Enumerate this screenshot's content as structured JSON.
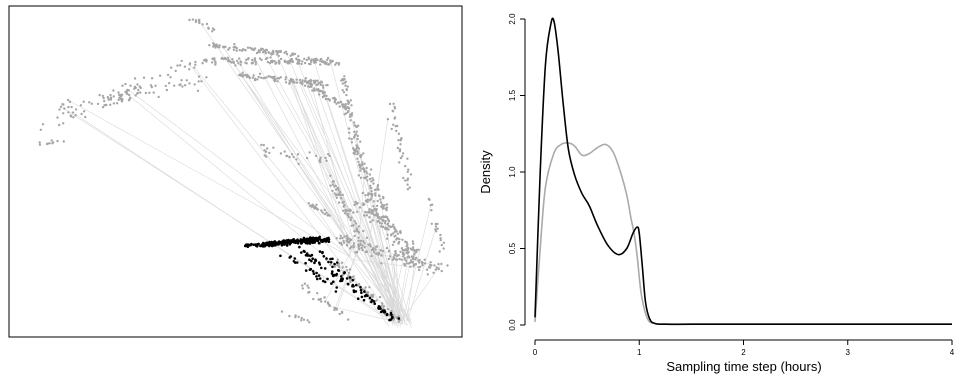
{
  "chart_data": [
    {
      "type": "scatter",
      "title": "",
      "xlabel": "",
      "ylabel": "",
      "axes_shown": false,
      "series": [
        {
          "name": "",
          "color": "#a6a6a6",
          "role": "background trajectory points"
        },
        {
          "name": "",
          "color": "#000000",
          "role": "highlighted trajectory points"
        }
      ]
    },
    {
      "type": "line",
      "title": "",
      "xlabel": "Sampling time step (hours)",
      "ylabel": "Density",
      "xlim": [
        0,
        4
      ],
      "ylim": [
        0,
        2.0
      ],
      "x_ticks": [
        "0",
        "1",
        "2",
        "3",
        "4"
      ],
      "y_ticks": [
        "0.0",
        "0.5",
        "1.0",
        "1.5",
        "2.0"
      ],
      "series": [
        {
          "name": "",
          "color": "#000000",
          "x": [
            0,
            0.05,
            0.1,
            0.15,
            0.18,
            0.22,
            0.27,
            0.32,
            0.38,
            0.45,
            0.52,
            0.6,
            0.7,
            0.8,
            0.88,
            0.94,
            0.98,
            1.0,
            1.03,
            1.06,
            1.1,
            1.15,
            1.25,
            1.5,
            2,
            3,
            4
          ],
          "y": [
            0.05,
            1.0,
            1.7,
            1.96,
            1.99,
            1.8,
            1.45,
            1.15,
            0.98,
            0.86,
            0.78,
            0.65,
            0.52,
            0.46,
            0.5,
            0.6,
            0.64,
            0.6,
            0.38,
            0.15,
            0.04,
            0.01,
            0.005,
            0.005,
            0.005,
            0.005,
            0.005
          ]
        },
        {
          "name": "",
          "color": "#aaaaaa",
          "x": [
            0,
            0.05,
            0.1,
            0.18,
            0.25,
            0.32,
            0.38,
            0.45,
            0.52,
            0.6,
            0.68,
            0.75,
            0.82,
            0.88,
            0.92,
            0.95,
            0.98,
            1.02,
            1.08,
            1.15,
            1.3,
            2,
            3,
            4
          ],
          "y": [
            0.02,
            0.5,
            0.9,
            1.12,
            1.18,
            1.19,
            1.17,
            1.11,
            1.12,
            1.16,
            1.18,
            1.13,
            1.0,
            0.85,
            0.7,
            0.6,
            0.45,
            0.2,
            0.04,
            0.01,
            0.005,
            0.005,
            0.005,
            0.005
          ]
        }
      ]
    }
  ]
}
